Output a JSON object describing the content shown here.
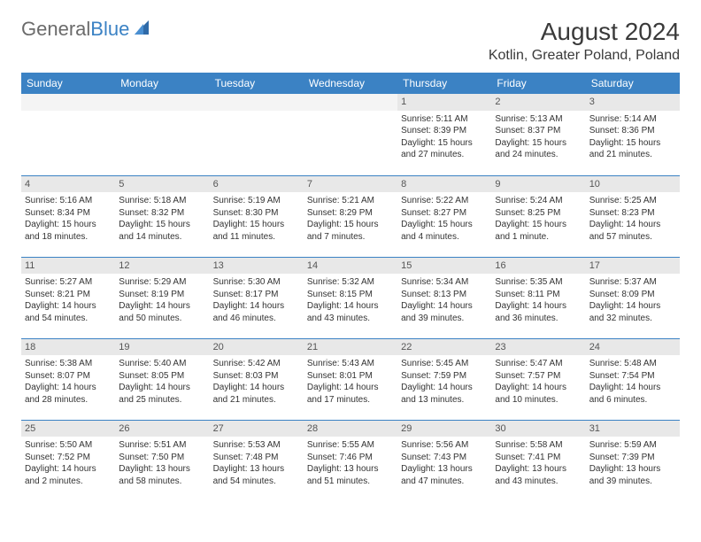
{
  "brand": {
    "name_gray": "General",
    "name_blue": "Blue"
  },
  "title": "August 2024",
  "location": "Kotlin, Greater Poland, Poland",
  "colors": {
    "header_bg": "#3b82c4",
    "header_text": "#ffffff",
    "daynum_bg": "#e8e8e8",
    "row_border": "#3b82c4",
    "logo_gray": "#6b6b6b",
    "logo_blue": "#3b82c4"
  },
  "days_of_week": [
    "Sunday",
    "Monday",
    "Tuesday",
    "Wednesday",
    "Thursday",
    "Friday",
    "Saturday"
  ],
  "weeks": [
    [
      null,
      null,
      null,
      null,
      {
        "n": "1",
        "sr": "Sunrise: 5:11 AM",
        "ss": "Sunset: 8:39 PM",
        "dl1": "Daylight: 15 hours",
        "dl2": "and 27 minutes."
      },
      {
        "n": "2",
        "sr": "Sunrise: 5:13 AM",
        "ss": "Sunset: 8:37 PM",
        "dl1": "Daylight: 15 hours",
        "dl2": "and 24 minutes."
      },
      {
        "n": "3",
        "sr": "Sunrise: 5:14 AM",
        "ss": "Sunset: 8:36 PM",
        "dl1": "Daylight: 15 hours",
        "dl2": "and 21 minutes."
      }
    ],
    [
      {
        "n": "4",
        "sr": "Sunrise: 5:16 AM",
        "ss": "Sunset: 8:34 PM",
        "dl1": "Daylight: 15 hours",
        "dl2": "and 18 minutes."
      },
      {
        "n": "5",
        "sr": "Sunrise: 5:18 AM",
        "ss": "Sunset: 8:32 PM",
        "dl1": "Daylight: 15 hours",
        "dl2": "and 14 minutes."
      },
      {
        "n": "6",
        "sr": "Sunrise: 5:19 AM",
        "ss": "Sunset: 8:30 PM",
        "dl1": "Daylight: 15 hours",
        "dl2": "and 11 minutes."
      },
      {
        "n": "7",
        "sr": "Sunrise: 5:21 AM",
        "ss": "Sunset: 8:29 PM",
        "dl1": "Daylight: 15 hours",
        "dl2": "and 7 minutes."
      },
      {
        "n": "8",
        "sr": "Sunrise: 5:22 AM",
        "ss": "Sunset: 8:27 PM",
        "dl1": "Daylight: 15 hours",
        "dl2": "and 4 minutes."
      },
      {
        "n": "9",
        "sr": "Sunrise: 5:24 AM",
        "ss": "Sunset: 8:25 PM",
        "dl1": "Daylight: 15 hours",
        "dl2": "and 1 minute."
      },
      {
        "n": "10",
        "sr": "Sunrise: 5:25 AM",
        "ss": "Sunset: 8:23 PM",
        "dl1": "Daylight: 14 hours",
        "dl2": "and 57 minutes."
      }
    ],
    [
      {
        "n": "11",
        "sr": "Sunrise: 5:27 AM",
        "ss": "Sunset: 8:21 PM",
        "dl1": "Daylight: 14 hours",
        "dl2": "and 54 minutes."
      },
      {
        "n": "12",
        "sr": "Sunrise: 5:29 AM",
        "ss": "Sunset: 8:19 PM",
        "dl1": "Daylight: 14 hours",
        "dl2": "and 50 minutes."
      },
      {
        "n": "13",
        "sr": "Sunrise: 5:30 AM",
        "ss": "Sunset: 8:17 PM",
        "dl1": "Daylight: 14 hours",
        "dl2": "and 46 minutes."
      },
      {
        "n": "14",
        "sr": "Sunrise: 5:32 AM",
        "ss": "Sunset: 8:15 PM",
        "dl1": "Daylight: 14 hours",
        "dl2": "and 43 minutes."
      },
      {
        "n": "15",
        "sr": "Sunrise: 5:34 AM",
        "ss": "Sunset: 8:13 PM",
        "dl1": "Daylight: 14 hours",
        "dl2": "and 39 minutes."
      },
      {
        "n": "16",
        "sr": "Sunrise: 5:35 AM",
        "ss": "Sunset: 8:11 PM",
        "dl1": "Daylight: 14 hours",
        "dl2": "and 36 minutes."
      },
      {
        "n": "17",
        "sr": "Sunrise: 5:37 AM",
        "ss": "Sunset: 8:09 PM",
        "dl1": "Daylight: 14 hours",
        "dl2": "and 32 minutes."
      }
    ],
    [
      {
        "n": "18",
        "sr": "Sunrise: 5:38 AM",
        "ss": "Sunset: 8:07 PM",
        "dl1": "Daylight: 14 hours",
        "dl2": "and 28 minutes."
      },
      {
        "n": "19",
        "sr": "Sunrise: 5:40 AM",
        "ss": "Sunset: 8:05 PM",
        "dl1": "Daylight: 14 hours",
        "dl2": "and 25 minutes."
      },
      {
        "n": "20",
        "sr": "Sunrise: 5:42 AM",
        "ss": "Sunset: 8:03 PM",
        "dl1": "Daylight: 14 hours",
        "dl2": "and 21 minutes."
      },
      {
        "n": "21",
        "sr": "Sunrise: 5:43 AM",
        "ss": "Sunset: 8:01 PM",
        "dl1": "Daylight: 14 hours",
        "dl2": "and 17 minutes."
      },
      {
        "n": "22",
        "sr": "Sunrise: 5:45 AM",
        "ss": "Sunset: 7:59 PM",
        "dl1": "Daylight: 14 hours",
        "dl2": "and 13 minutes."
      },
      {
        "n": "23",
        "sr": "Sunrise: 5:47 AM",
        "ss": "Sunset: 7:57 PM",
        "dl1": "Daylight: 14 hours",
        "dl2": "and 10 minutes."
      },
      {
        "n": "24",
        "sr": "Sunrise: 5:48 AM",
        "ss": "Sunset: 7:54 PM",
        "dl1": "Daylight: 14 hours",
        "dl2": "and 6 minutes."
      }
    ],
    [
      {
        "n": "25",
        "sr": "Sunrise: 5:50 AM",
        "ss": "Sunset: 7:52 PM",
        "dl1": "Daylight: 14 hours",
        "dl2": "and 2 minutes."
      },
      {
        "n": "26",
        "sr": "Sunrise: 5:51 AM",
        "ss": "Sunset: 7:50 PM",
        "dl1": "Daylight: 13 hours",
        "dl2": "and 58 minutes."
      },
      {
        "n": "27",
        "sr": "Sunrise: 5:53 AM",
        "ss": "Sunset: 7:48 PM",
        "dl1": "Daylight: 13 hours",
        "dl2": "and 54 minutes."
      },
      {
        "n": "28",
        "sr": "Sunrise: 5:55 AM",
        "ss": "Sunset: 7:46 PM",
        "dl1": "Daylight: 13 hours",
        "dl2": "and 51 minutes."
      },
      {
        "n": "29",
        "sr": "Sunrise: 5:56 AM",
        "ss": "Sunset: 7:43 PM",
        "dl1": "Daylight: 13 hours",
        "dl2": "and 47 minutes."
      },
      {
        "n": "30",
        "sr": "Sunrise: 5:58 AM",
        "ss": "Sunset: 7:41 PM",
        "dl1": "Daylight: 13 hours",
        "dl2": "and 43 minutes."
      },
      {
        "n": "31",
        "sr": "Sunrise: 5:59 AM",
        "ss": "Sunset: 7:39 PM",
        "dl1": "Daylight: 13 hours",
        "dl2": "and 39 minutes."
      }
    ]
  ]
}
